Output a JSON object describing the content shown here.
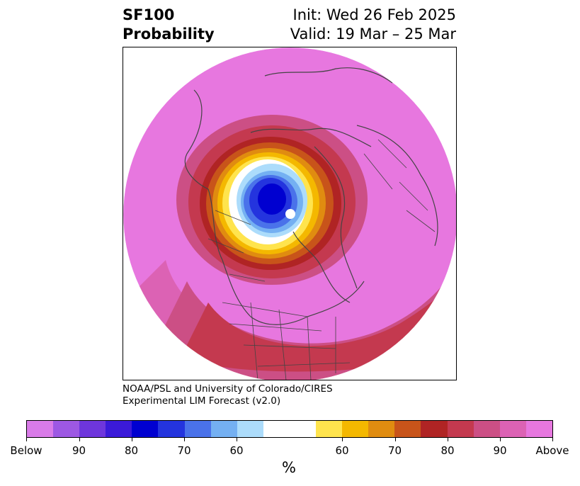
{
  "header": {
    "title_line1": "SF100",
    "title_line2": "Probability",
    "init": "Init: Wed 26 Feb 2025",
    "valid": "Valid: 19 Mar – 25 Mar"
  },
  "credits": {
    "line1": "NOAA/PSL and University of Colorado/CIRES",
    "line2": "Experimental LIM Forecast (v2.0)"
  },
  "colorbar": {
    "colors": [
      "#d97be8",
      "#9d58e3",
      "#6e36dc",
      "#3b1ad9",
      "#0000d0",
      "#2434de",
      "#4a72ea",
      "#74b0f2",
      "#acdcfb",
      "#ffffff",
      "#ffe44d",
      "#f4b800",
      "#e08c10",
      "#c8541a",
      "#b02424",
      "#c4394f",
      "#cc4f85",
      "#dc62b4",
      "#e777df"
    ],
    "tick_labels": [
      "Below",
      "90",
      "80",
      "70",
      "60",
      "60",
      "70",
      "80",
      "90",
      "Above"
    ],
    "unit": "%"
  }
}
